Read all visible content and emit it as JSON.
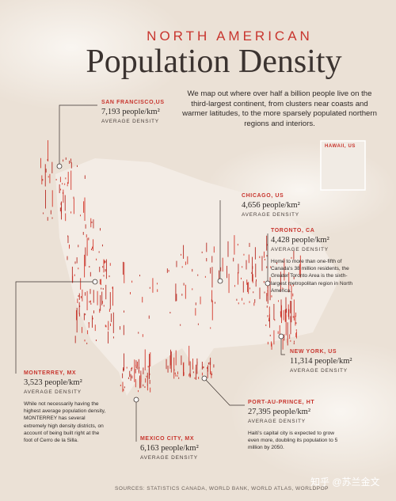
{
  "header": {
    "kicker": "NORTH AMERICAN",
    "title": "Population Density",
    "intro": "We map out where over half a billion people live on the third-largest continent, from clusters near coasts and warmer latitudes, to the more sparsely populated northern regions and interiors."
  },
  "inset": {
    "label": "HAWAII, US"
  },
  "cities": [
    {
      "name": "SAN FRANCISCO,US",
      "density": "7,193 people/km²",
      "caption": "AVERAGE DENSITY"
    },
    {
      "name": "CHICAGO, US",
      "density": "4,656 people/km²",
      "caption": "AVERAGE DENSITY"
    },
    {
      "name": "TORONTO, CA",
      "density": "4,428 people/km²",
      "caption": "AVERAGE DENSITY",
      "note": "Home to more than one-fifth of Canada's 38 million residents, the Greater Toronto Area is the sixth-largest metropolitan region in North America."
    },
    {
      "name": "NEW YORK, US",
      "density": "11,314 people/km²",
      "caption": "AVERAGE DENSITY"
    },
    {
      "name": "MONTERREY, MX",
      "density": "3,523 people/km²",
      "caption": "AVERAGE DENSITY",
      "note": "While not necessarily having the highest average population density, MONTERREY has several extremely high density districts, on account of being built right at the foot of Cerro de la Silla."
    },
    {
      "name": "MEXICO CITY, MX",
      "density": "6,163 people/km²",
      "caption": "AVERAGE DENSITY"
    },
    {
      "name": "PORT-AU-PRINCE, HT",
      "density": "27,395 people/km²",
      "caption": "AVERAGE DENSITY",
      "note": "Haiti's capital city is expected to grow even more, doubling its population to 5 million by 2050."
    }
  ],
  "footer": {
    "sources": "SOURCES: STATISTICS CANADA, WORLD BANK, WORLD ATLAS, WORLDPOP",
    "watermark": "知乎 @苏兰金文"
  }
}
